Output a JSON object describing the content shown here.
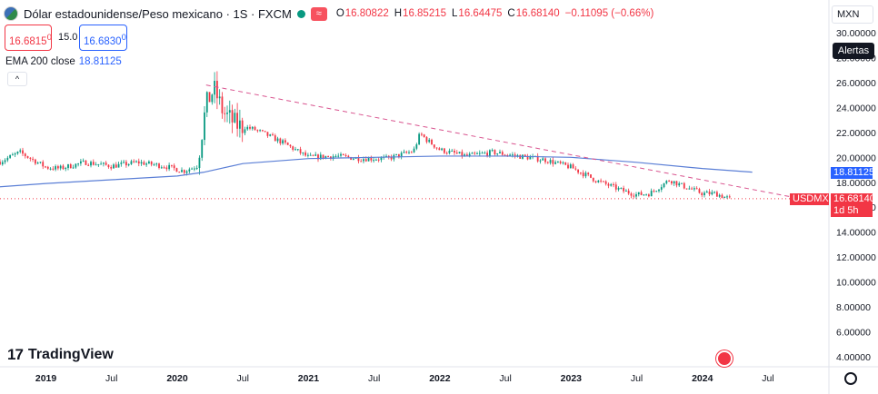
{
  "header": {
    "title": "Dólar estadounidense/Peso mexicano · 1S · FXCM",
    "open_label": "O",
    "open": "16.80822",
    "high_label": "H",
    "high": "16.85215",
    "low_label": "L",
    "low": "16.64475",
    "close_label": "C",
    "close": "16.68140",
    "change": "−0.11095 (−0.66%)",
    "replay_symbol": "≈"
  },
  "trade": {
    "sell": "16.6815",
    "sell_sup": "0",
    "spread": "15.0",
    "buy": "16.6830",
    "buy_sup": "0"
  },
  "indicator": {
    "label": "EMA 200 close",
    "value": "18.81125",
    "collapse_symbol": "^"
  },
  "scale": {
    "currency": "MXN",
    "alerts": "Alertas",
    "ema_tag": "18.81125",
    "price_tag": "16.68140",
    "countdown": "1d 5h",
    "symbol_tag": "USDMXN",
    "y_ticks": [
      "30.00000",
      "28.00000",
      "26.00000",
      "24.00000",
      "22.00000",
      "20.00000",
      "18.00000",
      "16.00000",
      "14.00000",
      "12.00000",
      "10.00000",
      "8.00000",
      "6.00000",
      "4.00000"
    ]
  },
  "time_axis": {
    "labels": [
      {
        "t": 2019.0,
        "label": "2019"
      },
      {
        "t": 2019.5,
        "label": "Jul"
      },
      {
        "t": 2020.0,
        "label": "2020"
      },
      {
        "t": 2020.5,
        "label": "Jul"
      },
      {
        "t": 2021.0,
        "label": "2021"
      },
      {
        "t": 2021.5,
        "label": "Jul"
      },
      {
        "t": 2022.0,
        "label": "2022"
      },
      {
        "t": 2022.5,
        "label": "Jul"
      },
      {
        "t": 2023.0,
        "label": "2023"
      },
      {
        "t": 2023.5,
        "label": "Jul"
      },
      {
        "t": 2024.0,
        "label": "2024"
      },
      {
        "t": 2024.5,
        "label": "Jul"
      }
    ]
  },
  "branding": {
    "logo_mark": "17",
    "name": "TradingView"
  },
  "colors": {
    "up": "#089981",
    "down": "#f23645",
    "ema": "#5b7fd6",
    "trendline": "#d9548f",
    "price_line": "#f23645",
    "grid": "#f0f3fa"
  },
  "chart_data": {
    "type": "candlestick",
    "title": "Dólar estadounidense/Peso mexicano",
    "interval": "1S",
    "ylim": [
      4,
      31
    ],
    "xlim": [
      2018.65,
      2024.95
    ],
    "grid": false,
    "x": [
      2018.6,
      2018.8,
      2019.0,
      2019.1,
      2019.3,
      2019.5,
      2019.7,
      2019.9,
      2020.05,
      2020.15,
      2020.22,
      2020.28,
      2020.35,
      2020.45,
      2020.6,
      2020.8,
      2021.0,
      2021.2,
      2021.4,
      2021.6,
      2021.8,
      2021.85,
      2021.9,
      2022.0,
      2022.2,
      2022.4,
      2022.6,
      2022.8,
      2023.0,
      2023.2,
      2023.4,
      2023.5,
      2023.6,
      2023.75,
      2023.85,
      2024.0,
      2024.1,
      2024.2
    ],
    "close": [
      19.4,
      20.4,
      19.2,
      19.1,
      19.6,
      19.3,
      19.6,
      19.3,
      18.9,
      19.3,
      24.2,
      25.5,
      23.6,
      22.6,
      22.2,
      21.2,
      20.0,
      20.1,
      19.9,
      19.9,
      20.5,
      21.9,
      21.4,
      20.6,
      20.1,
      20.4,
      20.1,
      19.8,
      19.2,
      18.1,
      17.3,
      17.0,
      17.1,
      18.2,
      17.7,
      17.1,
      17.1,
      16.7
    ],
    "ema": {
      "name": "EMA 200 close",
      "x": [
        2018.6,
        2019.0,
        2019.5,
        2020.0,
        2020.2,
        2020.5,
        2021.0,
        2021.5,
        2022.0,
        2022.5,
        2023.0,
        2023.5,
        2024.0,
        2024.38
      ],
      "values": [
        17.6,
        17.9,
        18.2,
        18.5,
        18.8,
        19.5,
        19.9,
        20.0,
        20.1,
        20.1,
        20.0,
        19.6,
        19.1,
        18.81
      ]
    },
    "trendline": {
      "x": [
        2020.22,
        2024.75
      ],
      "values": [
        25.8,
        16.68
      ]
    },
    "last_price": 16.6814
  }
}
